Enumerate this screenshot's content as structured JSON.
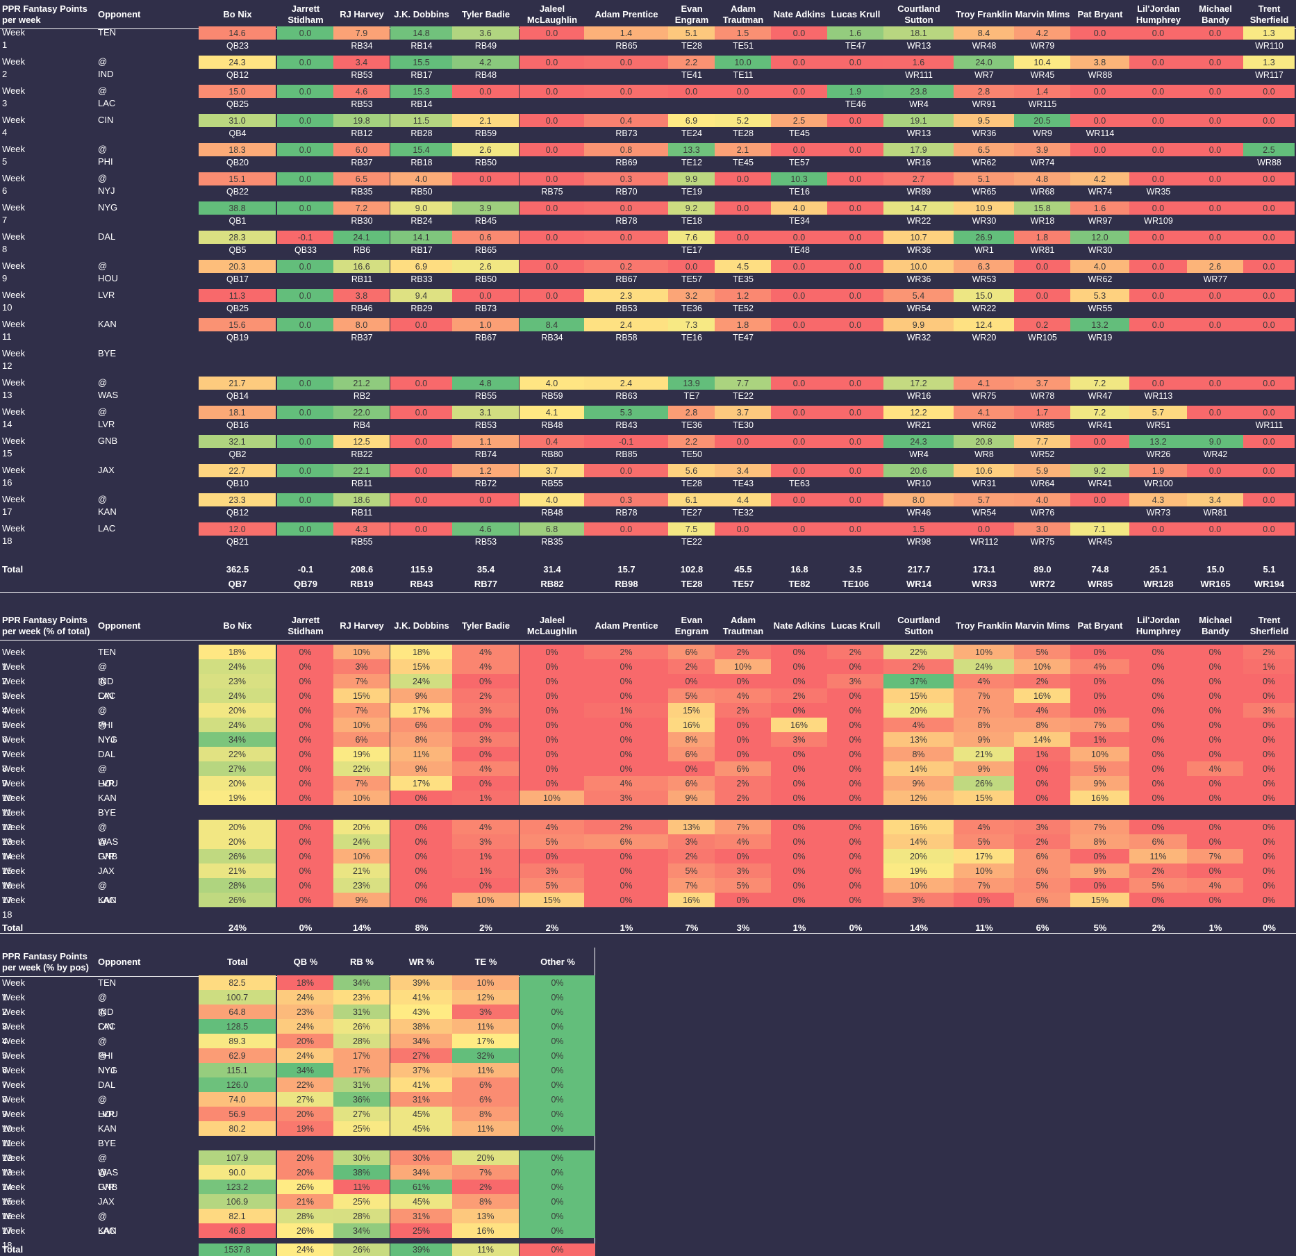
{
  "players": [
    "Bo Nix",
    "Jarrett Stidham",
    "RJ Harvey",
    "J.K. Dobbins",
    "Tyler Badie",
    "Jaleel McLaughlin",
    "Adam Prentice",
    "Evan Engram",
    "Adam Trautman",
    "Nate Adkins",
    "Lucas Krull",
    "Courtland Sutton",
    "Troy Franklin",
    "Marvin Mims",
    "Pat Bryant",
    "Lil'Jordan Humphrey",
    "Michael Bandy",
    "Trent Sherfield"
  ],
  "opponent_label": "Opponent",
  "total_label": "Total",
  "weeks": [
    "Week 1",
    "Week 2",
    "Week 3",
    "Week 4",
    "Week 5",
    "Week 6",
    "Week 7",
    "Week 8",
    "Week 9",
    "Week 10",
    "Week 11",
    "Week 12",
    "Week 13",
    "Week 14",
    "Week 15",
    "Week 16",
    "Week 17",
    "Week 18"
  ],
  "opponents": [
    "TEN",
    "@ IND",
    "@ LAC",
    "CIN",
    "@ PHI",
    "@ NYJ",
    "NYG",
    "DAL",
    "@ HOU",
    "LVR",
    "KAN",
    "BYE",
    "@ WAS",
    "@ LVR",
    "GNB",
    "JAX",
    "@ KAN",
    "LAC"
  ],
  "points": {
    "title": "PPR Fantasy Points per week",
    "values": [
      [
        "14.6",
        "0.0",
        "7.9",
        "14.8",
        "3.6",
        "0.0",
        "1.4",
        "5.1",
        "1.5",
        "0.0",
        "1.6",
        "18.1",
        "8.4",
        "4.2",
        "0.0",
        "0.0",
        "0.0",
        "1.3"
      ],
      [
        "24.3",
        "0.0",
        "3.4",
        "15.5",
        "4.2",
        "0.0",
        "0.0",
        "2.2",
        "10.0",
        "0.0",
        "0.0",
        "1.6",
        "24.0",
        "10.4",
        "3.8",
        "0.0",
        "0.0",
        "1.3"
      ],
      [
        "15.0",
        "0.0",
        "4.6",
        "15.3",
        "0.0",
        "0.0",
        "0.0",
        "0.0",
        "0.0",
        "0.0",
        "1.9",
        "23.8",
        "2.8",
        "1.4",
        "0.0",
        "0.0",
        "0.0",
        "0.0"
      ],
      [
        "31.0",
        "0.0",
        "19.8",
        "11.5",
        "2.1",
        "0.0",
        "0.4",
        "6.9",
        "5.2",
        "2.5",
        "0.0",
        "19.1",
        "9.5",
        "20.5",
        "0.0",
        "0.0",
        "0.0",
        "0.0"
      ],
      [
        "18.3",
        "0.0",
        "6.0",
        "15.4",
        "2.6",
        "0.0",
        "0.8",
        "13.3",
        "2.1",
        "0.0",
        "0.0",
        "17.9",
        "6.5",
        "3.9",
        "0.0",
        "0.0",
        "0.0",
        "2.5"
      ],
      [
        "15.1",
        "0.0",
        "6.5",
        "4.0",
        "0.0",
        "0.0",
        "0.3",
        "9.9",
        "0.0",
        "10.3",
        "0.0",
        "2.7",
        "5.1",
        "4.8",
        "4.2",
        "0.0",
        "0.0",
        "0.0"
      ],
      [
        "38.8",
        "0.0",
        "7.2",
        "9.0",
        "3.9",
        "0.0",
        "0.0",
        "9.2",
        "0.0",
        "4.0",
        "0.0",
        "14.7",
        "10.9",
        "15.8",
        "1.6",
        "0.0",
        "0.0",
        "0.0"
      ],
      [
        "28.3",
        "-0.1",
        "24.1",
        "14.1",
        "0.6",
        "0.0",
        "0.0",
        "7.6",
        "0.0",
        "0.0",
        "0.0",
        "10.7",
        "26.9",
        "1.8",
        "12.0",
        "0.0",
        "0.0",
        "0.0"
      ],
      [
        "20.3",
        "0.0",
        "16.6",
        "6.9",
        "2.6",
        "0.0",
        "0.2",
        "0.0",
        "4.5",
        "0.0",
        "0.0",
        "10.0",
        "6.3",
        "0.0",
        "4.0",
        "0.0",
        "2.6",
        "0.0"
      ],
      [
        "11.3",
        "0.0",
        "3.8",
        "9.4",
        "0.0",
        "0.0",
        "2.3",
        "3.2",
        "1.2",
        "0.0",
        "0.0",
        "5.4",
        "15.0",
        "0.0",
        "5.3",
        "0.0",
        "0.0",
        "0.0"
      ],
      [
        "15.6",
        "0.0",
        "8.0",
        "0.0",
        "1.0",
        "8.4",
        "2.4",
        "7.3",
        "1.8",
        "0.0",
        "0.0",
        "9.9",
        "12.4",
        "0.2",
        "13.2",
        "0.0",
        "0.0",
        "0.0"
      ],
      null,
      [
        "21.7",
        "0.0",
        "21.2",
        "0.0",
        "4.8",
        "4.0",
        "2.4",
        "13.9",
        "7.7",
        "0.0",
        "0.0",
        "17.2",
        "4.1",
        "3.7",
        "7.2",
        "0.0",
        "0.0",
        "0.0"
      ],
      [
        "18.1",
        "0.0",
        "22.0",
        "0.0",
        "3.1",
        "4.1",
        "5.3",
        "2.8",
        "3.7",
        "0.0",
        "0.0",
        "12.2",
        "4.1",
        "1.7",
        "7.2",
        "5.7",
        "0.0",
        "0.0"
      ],
      [
        "32.1",
        "0.0",
        "12.5",
        "0.0",
        "1.1",
        "0.4",
        "-0.1",
        "2.2",
        "0.0",
        "0.0",
        "0.0",
        "24.3",
        "20.8",
        "7.7",
        "0.0",
        "13.2",
        "9.0",
        "0.0"
      ],
      [
        "22.7",
        "0.0",
        "22.1",
        "0.0",
        "1.2",
        "3.7",
        "0.0",
        "5.6",
        "3.4",
        "0.0",
        "0.0",
        "20.6",
        "10.6",
        "5.9",
        "9.2",
        "1.9",
        "0.0",
        "0.0"
      ],
      [
        "23.3",
        "0.0",
        "18.6",
        "0.0",
        "0.0",
        "4.0",
        "0.3",
        "6.1",
        "4.4",
        "0.0",
        "0.0",
        "8.0",
        "5.7",
        "4.0",
        "0.0",
        "4.3",
        "3.4",
        "0.0"
      ],
      [
        "12.0",
        "0.0",
        "4.3",
        "0.0",
        "4.6",
        "6.8",
        "0.0",
        "7.5",
        "0.0",
        "0.0",
        "0.0",
        "1.5",
        "0.0",
        "3.0",
        "7.1",
        "0.0",
        "0.0",
        "0.0"
      ]
    ],
    "ranks": [
      [
        "QB23",
        "",
        "RB34",
        "RB14",
        "RB49",
        "",
        "RB65",
        "TE28",
        "TE51",
        "",
        "TE47",
        "WR13",
        "WR48",
        "WR79",
        "",
        "",
        "",
        "WR110"
      ],
      [
        "QB12",
        "",
        "RB53",
        "RB17",
        "RB48",
        "",
        "",
        "TE41",
        "TE11",
        "",
        "",
        "WR111",
        "WR7",
        "WR45",
        "WR88",
        "",
        "",
        "WR117"
      ],
      [
        "QB25",
        "",
        "RB53",
        "RB14",
        "",
        "",
        "",
        "",
        "",
        "",
        "TE46",
        "WR4",
        "WR91",
        "WR115",
        "",
        "",
        "",
        ""
      ],
      [
        "QB4",
        "",
        "RB12",
        "RB28",
        "RB59",
        "",
        "RB73",
        "TE24",
        "TE28",
        "TE45",
        "",
        "WR13",
        "WR36",
        "WR9",
        "WR114",
        "",
        "",
        ""
      ],
      [
        "QB20",
        "",
        "RB37",
        "RB18",
        "RB50",
        "",
        "RB69",
        "TE12",
        "TE45",
        "TE57",
        "",
        "WR16",
        "WR62",
        "WR74",
        "",
        "",
        "",
        "WR88"
      ],
      [
        "QB22",
        "",
        "RB35",
        "RB50",
        "",
        "RB75",
        "RB70",
        "TE19",
        "",
        "TE16",
        "",
        "WR89",
        "WR65",
        "WR68",
        "WR74",
        "WR35",
        "",
        ""
      ],
      [
        "QB1",
        "",
        "RB30",
        "RB24",
        "RB45",
        "",
        "RB78",
        "TE18",
        "",
        "TE34",
        "",
        "WR22",
        "WR30",
        "WR18",
        "WR97",
        "WR109",
        "",
        ""
      ],
      [
        "QB5",
        "QB33",
        "RB6",
        "RB17",
        "RB65",
        "",
        "",
        "TE17",
        "",
        "TE48",
        "",
        "WR36",
        "WR1",
        "WR81",
        "WR30",
        "",
        "",
        ""
      ],
      [
        "QB17",
        "",
        "RB11",
        "RB33",
        "RB50",
        "",
        "RB67",
        "TE57",
        "TE35",
        "",
        "",
        "WR36",
        "WR53",
        "",
        "WR62",
        "",
        "WR77",
        ""
      ],
      [
        "QB25",
        "",
        "RB46",
        "RB29",
        "RB73",
        "",
        "RB53",
        "TE36",
        "TE52",
        "",
        "",
        "WR54",
        "WR22",
        "",
        "WR55",
        "",
        "",
        ""
      ],
      [
        "QB19",
        "",
        "RB37",
        "",
        "RB67",
        "RB34",
        "RB58",
        "TE16",
        "TE47",
        "",
        "",
        "WR32",
        "WR20",
        "WR105",
        "WR19",
        "",
        "",
        ""
      ],
      null,
      [
        "QB14",
        "",
        "RB2",
        "",
        "RB55",
        "RB59",
        "RB63",
        "TE7",
        "TE22",
        "",
        "",
        "WR16",
        "WR75",
        "WR78",
        "WR47",
        "WR113",
        "",
        ""
      ],
      [
        "QB16",
        "",
        "RB4",
        "",
        "RB53",
        "RB48",
        "RB43",
        "TE36",
        "TE30",
        "",
        "",
        "WR21",
        "WR62",
        "WR85",
        "WR41",
        "WR51",
        "",
        "WR111"
      ],
      [
        "QB2",
        "",
        "RB22",
        "",
        "RB74",
        "RB80",
        "RB85",
        "TE50",
        "",
        "",
        "",
        "WR4",
        "WR8",
        "WR52",
        "",
        "WR26",
        "WR42",
        ""
      ],
      [
        "QB10",
        "",
        "RB11",
        "",
        "RB72",
        "RB55",
        "",
        "TE28",
        "TE43",
        "TE63",
        "",
        "WR10",
        "WR31",
        "WR64",
        "WR41",
        "WR100",
        "",
        ""
      ],
      [
        "QB12",
        "",
        "RB11",
        "",
        "",
        "RB48",
        "RB78",
        "TE27",
        "TE32",
        "",
        "",
        "WR46",
        "WR54",
        "WR76",
        "",
        "WR73",
        "WR81",
        ""
      ],
      [
        "QB21",
        "",
        "RB55",
        "",
        "RB53",
        "RB35",
        "",
        "TE22",
        "",
        "",
        "",
        "WR98",
        "WR112",
        "WR75",
        "WR45",
        "",
        "",
        ""
      ]
    ],
    "totals": [
      "362.5",
      "-0.1",
      "208.6",
      "115.9",
      "35.4",
      "31.4",
      "15.7",
      "102.8",
      "45.5",
      "16.8",
      "3.5",
      "217.7",
      "173.1",
      "89.0",
      "74.8",
      "25.1",
      "15.0",
      "5.1"
    ],
    "total_ranks": [
      "QB7",
      "QB79",
      "RB19",
      "RB43",
      "RB77",
      "RB82",
      "RB98",
      "TE28",
      "TE57",
      "TE82",
      "TE106",
      "WR14",
      "WR33",
      "WR72",
      "WR85",
      "WR128",
      "WR165",
      "WR194"
    ]
  },
  "share": {
    "title": "PPR Fantasy Points per week (% of total)",
    "values": [
      [
        "18%",
        "0%",
        "10%",
        "18%",
        "4%",
        "0%",
        "2%",
        "6%",
        "2%",
        "0%",
        "2%",
        "22%",
        "10%",
        "5%",
        "0%",
        "0%",
        "0%",
        "2%"
      ],
      [
        "24%",
        "0%",
        "3%",
        "15%",
        "4%",
        "0%",
        "0%",
        "2%",
        "10%",
        "0%",
        "0%",
        "2%",
        "24%",
        "10%",
        "4%",
        "0%",
        "0%",
        "1%"
      ],
      [
        "23%",
        "0%",
        "7%",
        "24%",
        "0%",
        "0%",
        "0%",
        "0%",
        "0%",
        "0%",
        "3%",
        "37%",
        "4%",
        "2%",
        "0%",
        "0%",
        "0%",
        "0%"
      ],
      [
        "24%",
        "0%",
        "15%",
        "9%",
        "2%",
        "0%",
        "0%",
        "5%",
        "4%",
        "2%",
        "0%",
        "15%",
        "7%",
        "16%",
        "0%",
        "0%",
        "0%",
        "0%"
      ],
      [
        "20%",
        "0%",
        "7%",
        "17%",
        "3%",
        "0%",
        "1%",
        "15%",
        "2%",
        "0%",
        "0%",
        "20%",
        "7%",
        "4%",
        "0%",
        "0%",
        "0%",
        "3%"
      ],
      [
        "24%",
        "0%",
        "10%",
        "6%",
        "0%",
        "0%",
        "0%",
        "16%",
        "0%",
        "16%",
        "0%",
        "4%",
        "8%",
        "8%",
        "7%",
        "0%",
        "0%",
        "0%"
      ],
      [
        "34%",
        "0%",
        "6%",
        "8%",
        "3%",
        "0%",
        "0%",
        "8%",
        "0%",
        "3%",
        "0%",
        "13%",
        "9%",
        "14%",
        "1%",
        "0%",
        "0%",
        "0%"
      ],
      [
        "22%",
        "0%",
        "19%",
        "11%",
        "0%",
        "0%",
        "0%",
        "6%",
        "0%",
        "0%",
        "0%",
        "8%",
        "21%",
        "1%",
        "10%",
        "0%",
        "0%",
        "0%"
      ],
      [
        "27%",
        "0%",
        "22%",
        "9%",
        "4%",
        "0%",
        "0%",
        "0%",
        "6%",
        "0%",
        "0%",
        "14%",
        "9%",
        "0%",
        "5%",
        "0%",
        "4%",
        "0%"
      ],
      [
        "20%",
        "0%",
        "7%",
        "17%",
        "0%",
        "0%",
        "4%",
        "6%",
        "2%",
        "0%",
        "0%",
        "9%",
        "26%",
        "0%",
        "9%",
        "0%",
        "0%",
        "0%"
      ],
      [
        "19%",
        "0%",
        "10%",
        "0%",
        "1%",
        "10%",
        "3%",
        "9%",
        "2%",
        "0%",
        "0%",
        "12%",
        "15%",
        "0%",
        "16%",
        "0%",
        "0%",
        "0%"
      ],
      null,
      [
        "20%",
        "0%",
        "20%",
        "0%",
        "4%",
        "4%",
        "2%",
        "13%",
        "7%",
        "0%",
        "0%",
        "16%",
        "4%",
        "3%",
        "7%",
        "0%",
        "0%",
        "0%"
      ],
      [
        "20%",
        "0%",
        "24%",
        "0%",
        "3%",
        "5%",
        "6%",
        "3%",
        "4%",
        "0%",
        "0%",
        "14%",
        "5%",
        "2%",
        "8%",
        "6%",
        "0%",
        "0%"
      ],
      [
        "26%",
        "0%",
        "10%",
        "0%",
        "1%",
        "0%",
        "0%",
        "2%",
        "0%",
        "0%",
        "0%",
        "20%",
        "17%",
        "6%",
        "0%",
        "11%",
        "7%",
        "0%"
      ],
      [
        "21%",
        "0%",
        "21%",
        "0%",
        "1%",
        "3%",
        "0%",
        "5%",
        "3%",
        "0%",
        "0%",
        "19%",
        "10%",
        "6%",
        "9%",
        "2%",
        "0%",
        "0%"
      ],
      [
        "28%",
        "0%",
        "23%",
        "0%",
        "0%",
        "5%",
        "0%",
        "7%",
        "5%",
        "0%",
        "0%",
        "10%",
        "7%",
        "5%",
        "0%",
        "5%",
        "4%",
        "0%"
      ],
      [
        "26%",
        "0%",
        "9%",
        "0%",
        "10%",
        "15%",
        "0%",
        "16%",
        "0%",
        "0%",
        "0%",
        "3%",
        "0%",
        "6%",
        "15%",
        "0%",
        "0%",
        "0%"
      ]
    ],
    "totals": [
      "24%",
      "0%",
      "14%",
      "8%",
      "2%",
      "2%",
      "1%",
      "7%",
      "3%",
      "1%",
      "0%",
      "14%",
      "11%",
      "6%",
      "5%",
      "2%",
      "1%",
      "0%"
    ]
  },
  "position": {
    "title": "PPR Fantasy Points per week (% by pos)",
    "columns": [
      "Total",
      "QB %",
      "RB %",
      "WR %",
      "TE %",
      "Other %"
    ],
    "values": [
      [
        "82.5",
        "18%",
        "34%",
        "39%",
        "10%",
        "0%"
      ],
      [
        "100.7",
        "24%",
        "23%",
        "41%",
        "12%",
        "0%"
      ],
      [
        "64.8",
        "23%",
        "31%",
        "43%",
        "3%",
        "0%"
      ],
      [
        "128.5",
        "24%",
        "26%",
        "38%",
        "11%",
        "0%"
      ],
      [
        "89.3",
        "20%",
        "28%",
        "34%",
        "17%",
        "0%"
      ],
      [
        "62.9",
        "24%",
        "17%",
        "27%",
        "32%",
        "0%"
      ],
      [
        "115.1",
        "34%",
        "17%",
        "37%",
        "11%",
        "0%"
      ],
      [
        "126.0",
        "22%",
        "31%",
        "41%",
        "6%",
        "0%"
      ],
      [
        "74.0",
        "27%",
        "36%",
        "31%",
        "6%",
        "0%"
      ],
      [
        "56.9",
        "20%",
        "27%",
        "45%",
        "8%",
        "0%"
      ],
      [
        "80.2",
        "19%",
        "25%",
        "45%",
        "11%",
        "0%"
      ],
      null,
      [
        "107.9",
        "20%",
        "30%",
        "30%",
        "20%",
        "0%"
      ],
      [
        "90.0",
        "20%",
        "38%",
        "34%",
        "7%",
        "0%"
      ],
      [
        "123.2",
        "26%",
        "11%",
        "61%",
        "2%",
        "0%"
      ],
      [
        "106.9",
        "21%",
        "25%",
        "45%",
        "8%",
        "0%"
      ],
      [
        "82.1",
        "28%",
        "28%",
        "31%",
        "13%",
        "0%"
      ],
      [
        "46.8",
        "26%",
        "34%",
        "25%",
        "16%",
        "0%"
      ]
    ],
    "totals": [
      "1537.8",
      "24%",
      "26%",
      "39%",
      "11%",
      "0%"
    ]
  },
  "scale_colors": {
    "red": "#f8696b",
    "yellow": "#ffeb84",
    "green": "#63be7b"
  }
}
